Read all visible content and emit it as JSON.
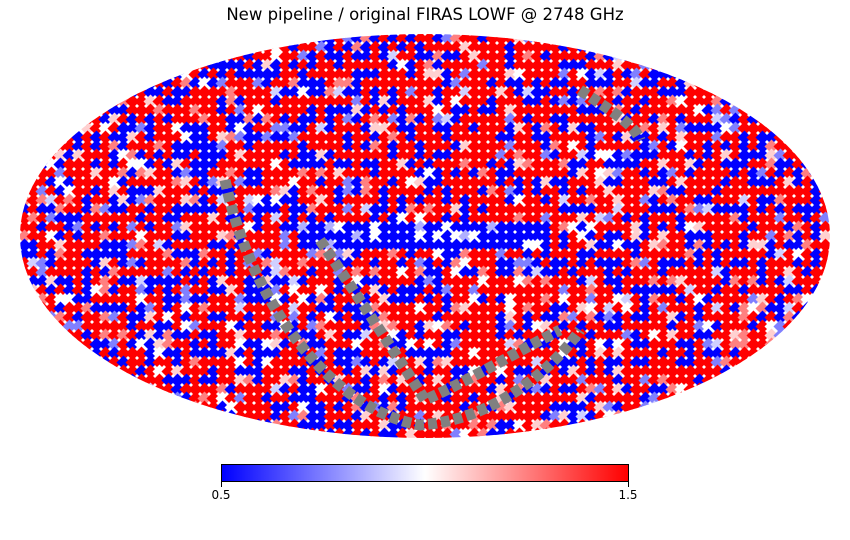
{
  "map": {
    "title": "New pipeline / original FIRAS LOWF @ 2748 GHz",
    "projection": "mollweide",
    "masked_color": "#808080",
    "colormap": [
      "#0000ff",
      "#ffffff",
      "#ff0000"
    ]
  },
  "colorbar": {
    "min": 0.5,
    "max": 1.5,
    "min_label": "0.5",
    "max_label": "1.5"
  }
}
